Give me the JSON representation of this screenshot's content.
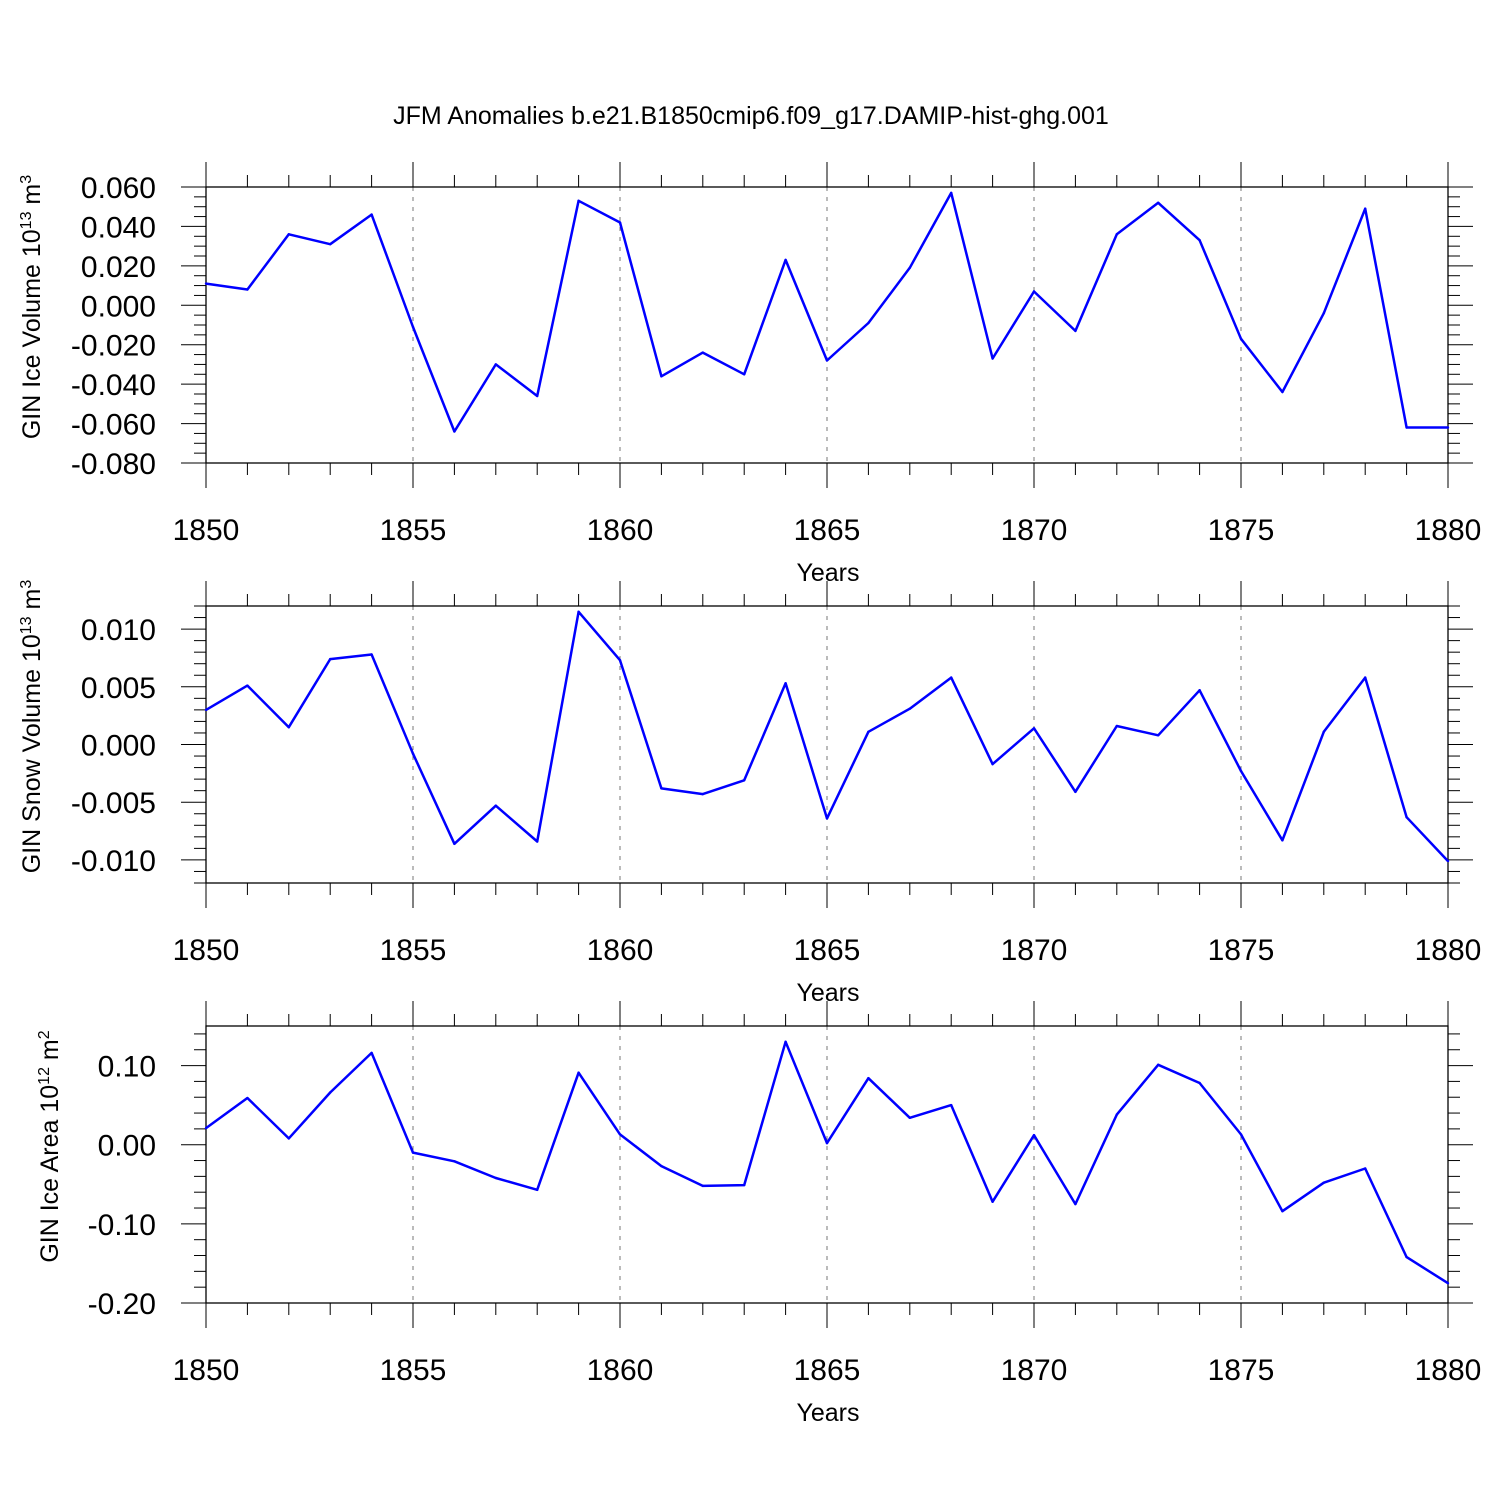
{
  "title": "JFM Anomalies b.e21.B1850cmip6.f09_g17.DAMIP-hist-ghg.001",
  "chart_data": [
    {
      "type": "line",
      "title": "JFM Anomalies b.e21.B1850cmip6.f09_g17.DAMIP-hist-ghg.001",
      "ylabel_main": "GIN Ice Volume 10",
      "ylabel_sup": "13",
      "ylabel_unit": " m",
      "ylabel_unit_sup": "3",
      "xlabel": "Years",
      "xlim": [
        1850,
        1880
      ],
      "ylim": [
        -0.08,
        0.06
      ],
      "xticks": [
        1850,
        1855,
        1860,
        1865,
        1870,
        1875,
        1880
      ],
      "yticks": [
        -0.08,
        -0.06,
        -0.04,
        -0.02,
        0.0,
        0.02,
        0.04,
        0.06
      ],
      "ytick_labels": [
        "-0.080",
        "-0.060",
        "-0.040",
        "-0.020",
        "0.000",
        "0.020",
        "0.040",
        "0.060"
      ],
      "series": [
        {
          "name": "GIN Ice Volume",
          "color": "#0000ff",
          "x": [
            1850,
            1851,
            1852,
            1853,
            1854,
            1855,
            1856,
            1857,
            1858,
            1859,
            1860,
            1861,
            1862,
            1863,
            1864,
            1865,
            1866,
            1867,
            1868,
            1869,
            1870,
            1871,
            1872,
            1873,
            1874,
            1875,
            1876,
            1877,
            1878,
            1879,
            1880
          ],
          "values": [
            0.011,
            0.008,
            0.036,
            0.031,
            0.046,
            -0.011,
            -0.064,
            -0.03,
            -0.046,
            0.053,
            0.042,
            -0.036,
            -0.024,
            -0.035,
            0.023,
            -0.028,
            -0.009,
            0.019,
            0.057,
            -0.027,
            0.007,
            -0.013,
            0.036,
            0.052,
            0.033,
            -0.017,
            -0.044,
            -0.004,
            0.049,
            -0.062,
            -0.062
          ]
        }
      ]
    },
    {
      "type": "line",
      "ylabel_main": "GIN Snow Volume 10",
      "ylabel_sup": "13",
      "ylabel_unit": " m",
      "ylabel_unit_sup": "3",
      "xlabel": "Years",
      "xlim": [
        1850,
        1880
      ],
      "ylim": [
        -0.012,
        0.012
      ],
      "xticks": [
        1850,
        1855,
        1860,
        1865,
        1870,
        1875,
        1880
      ],
      "yticks": [
        -0.01,
        -0.005,
        0.0,
        0.005,
        0.01
      ],
      "ytick_labels": [
        "-0.010",
        "-0.005",
        "0.000",
        "0.005",
        "0.010"
      ],
      "series": [
        {
          "name": "GIN Snow Volume",
          "color": "#0000ff",
          "x": [
            1850,
            1851,
            1852,
            1853,
            1854,
            1855,
            1856,
            1857,
            1858,
            1859,
            1860,
            1861,
            1862,
            1863,
            1864,
            1865,
            1866,
            1867,
            1868,
            1869,
            1870,
            1871,
            1872,
            1873,
            1874,
            1875,
            1876,
            1877,
            1878,
            1879,
            1880
          ],
          "values": [
            0.003,
            0.0051,
            0.0015,
            0.0074,
            0.0078,
            -0.0008,
            -0.0086,
            -0.0053,
            -0.0084,
            0.0115,
            0.0073,
            -0.0038,
            -0.0043,
            -0.0031,
            0.0053,
            -0.0064,
            0.0011,
            0.0031,
            0.0058,
            -0.0017,
            0.0014,
            -0.0041,
            0.0016,
            0.0008,
            0.0047,
            -0.0023,
            -0.0083,
            0.0011,
            0.0058,
            -0.0063,
            -0.0101
          ]
        }
      ]
    },
    {
      "type": "line",
      "ylabel_main": "GIN Ice Area 10",
      "ylabel_sup": "12",
      "ylabel_unit": " m",
      "ylabel_unit_sup": "2",
      "xlabel": "Years",
      "xlim": [
        1850,
        1880
      ],
      "ylim": [
        -0.2,
        0.15
      ],
      "xticks": [
        1850,
        1855,
        1860,
        1865,
        1870,
        1875,
        1880
      ],
      "yticks": [
        -0.2,
        -0.1,
        0.0,
        0.1
      ],
      "ytick_labels": [
        "-0.20",
        "-0.10",
        "0.00",
        "0.10"
      ],
      "series": [
        {
          "name": "GIN Ice Area",
          "color": "#0000ff",
          "x": [
            1850,
            1851,
            1852,
            1853,
            1854,
            1855,
            1856,
            1857,
            1858,
            1859,
            1860,
            1861,
            1862,
            1863,
            1864,
            1865,
            1866,
            1867,
            1868,
            1869,
            1870,
            1871,
            1872,
            1873,
            1874,
            1875,
            1876,
            1877,
            1878,
            1879,
            1880
          ],
          "values": [
            0.021,
            0.059,
            0.008,
            0.066,
            0.116,
            -0.01,
            -0.021,
            -0.042,
            -0.057,
            0.091,
            0.013,
            -0.027,
            -0.052,
            -0.051,
            0.13,
            0.002,
            0.084,
            0.034,
            0.05,
            -0.072,
            0.012,
            -0.075,
            0.038,
            0.101,
            0.078,
            0.013,
            -0.084,
            -0.048,
            -0.03,
            -0.142,
            -0.175
          ]
        }
      ]
    }
  ]
}
